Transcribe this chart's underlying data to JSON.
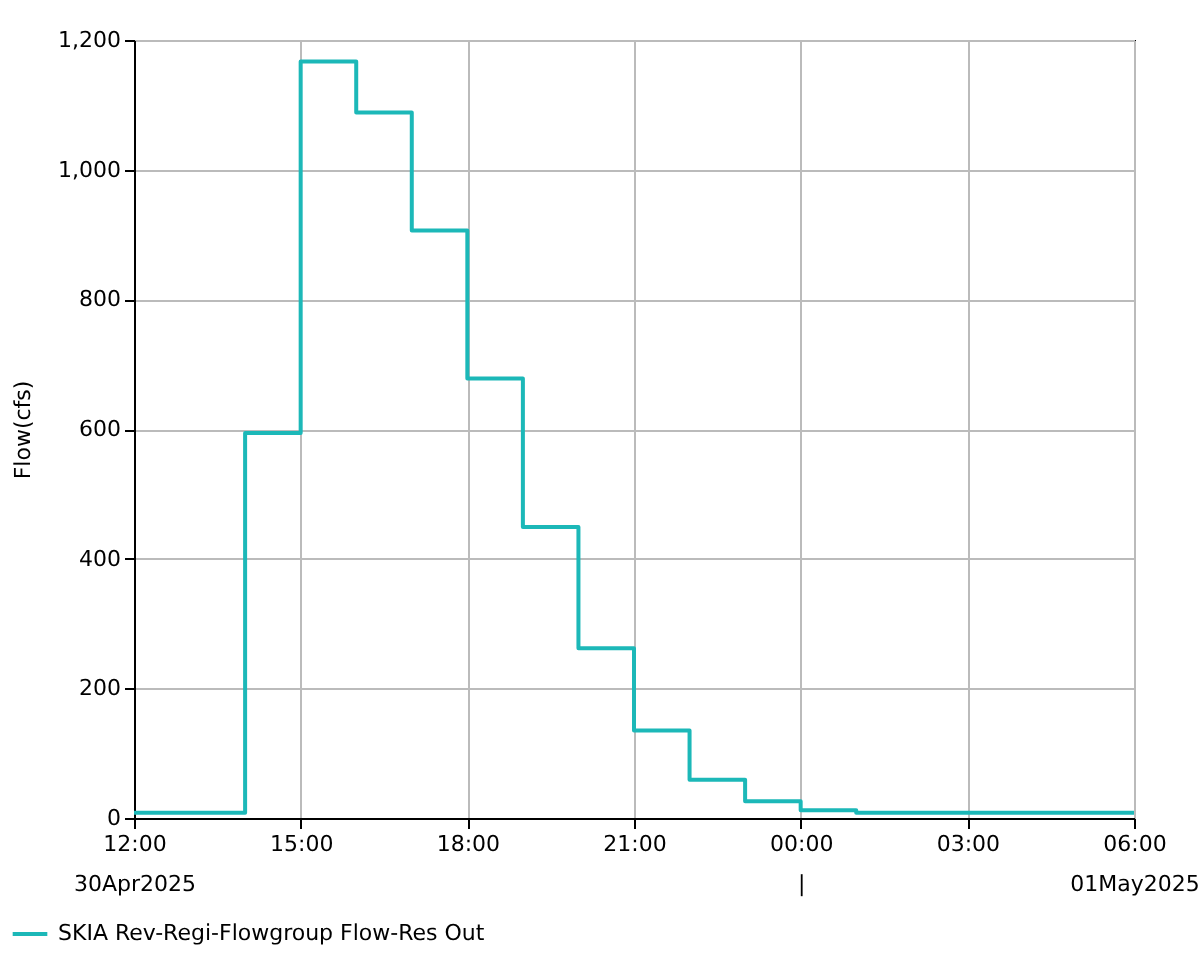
{
  "chart_data": {
    "type": "step",
    "ylabel": "Flow(cfs)",
    "x": [
      "2025-04-30T12:00",
      "2025-04-30T14:00",
      "2025-04-30T15:00",
      "2025-04-30T16:00",
      "2025-04-30T17:00",
      "2025-04-30T18:00",
      "2025-04-30T19:00",
      "2025-04-30T20:00",
      "2025-04-30T21:00",
      "2025-04-30T22:00",
      "2025-04-30T23:00",
      "2025-05-01T00:00",
      "2025-05-01T01:00",
      "2025-05-01T06:00"
    ],
    "series": [
      {
        "name": "SKIA Rev-Regi-Flowgroup Flow-Res Out",
        "color": "#1cb8b8",
        "values": [
          8,
          594,
          1167,
          1088,
          906,
          678,
          449,
          262,
          135,
          59,
          26,
          12,
          8,
          8
        ]
      }
    ],
    "xlim": [
      "2025-04-30T12:00",
      "2025-05-01T06:00"
    ],
    "xticks": [
      {
        "value": "2025-04-30T12:00",
        "label": "12:00\n30Apr2025"
      },
      {
        "value": "2025-04-30T15:00",
        "label": "15:00"
      },
      {
        "value": "2025-04-30T18:00",
        "label": "18:00"
      },
      {
        "value": "2025-04-30T21:00",
        "label": "21:00"
      },
      {
        "value": "2025-05-01T00:00",
        "label": "00:00\n|"
      },
      {
        "value": "2025-05-01T03:00",
        "label": "03:00"
      },
      {
        "value": "2025-05-01T06:00",
        "label": "06:00\n01May2025"
      }
    ],
    "ylim": [
      0,
      1200
    ],
    "yticks": [
      0,
      200,
      400,
      600,
      800,
      {
        "value": 1000,
        "label": "1,000"
      },
      {
        "value": 1200,
        "label": "1,200"
      }
    ],
    "grid": true,
    "legend": "bottom",
    "marker": "none",
    "line_style": "solid"
  }
}
